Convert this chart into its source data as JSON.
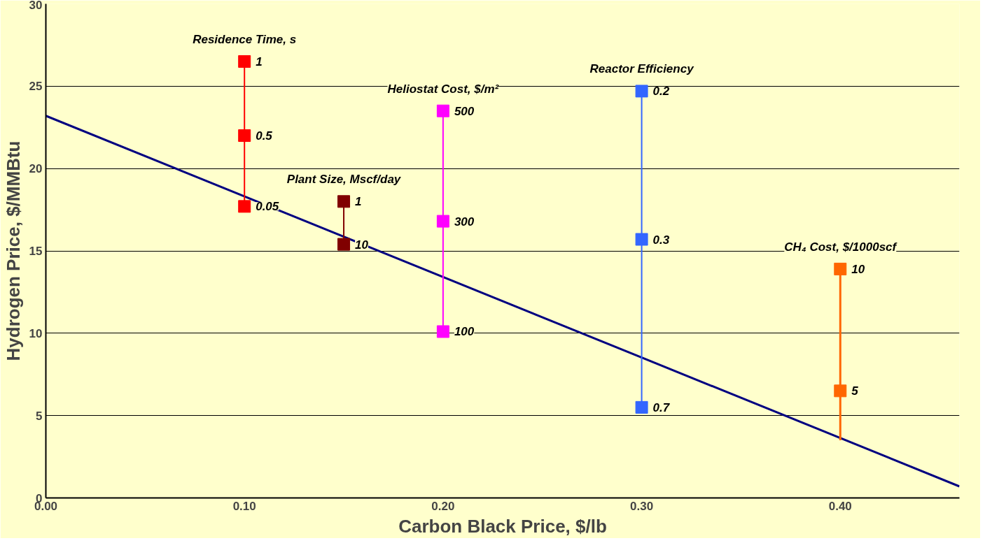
{
  "chart_data": {
    "type": "line",
    "xlabel": "Carbon Black Price, $/lb",
    "ylabel": "Hydrogen Price, $/MMBtu",
    "xlim": [
      0,
      0.46
    ],
    "ylim": [
      0,
      30
    ],
    "xticks": [
      {
        "value": 0,
        "label": "0.00"
      },
      {
        "value": 0.1,
        "label": "0.10"
      },
      {
        "value": 0.2,
        "label": "0.20"
      },
      {
        "value": 0.3,
        "label": "0.30"
      },
      {
        "value": 0.4,
        "label": "0.40"
      }
    ],
    "yticks": [
      0,
      5,
      10,
      15,
      20,
      25,
      30
    ],
    "grid": "y",
    "series": [
      {
        "marker": "none",
        "color": "#000080",
        "x": [
          0,
          0.46
        ],
        "values": [
          23.2,
          0.7
        ]
      },
      {
        "marker": "square",
        "name": "Residence Time, s",
        "color": "#ff0000",
        "x": [
          0.1,
          0.1,
          0.1
        ],
        "values": [
          26.5,
          22.0,
          17.7
        ]
      },
      {
        "marker": "square",
        "name": "Plant Size, Mscf/day",
        "color": "#800000",
        "x": [
          0.15,
          0.15
        ],
        "values": [
          18.0,
          15.4
        ]
      },
      {
        "marker": "square",
        "name": "Heliostat Cost, $/m²",
        "color": "#ff00ff",
        "x": [
          0.2,
          0.2,
          0.2
        ],
        "values": [
          23.5,
          16.8,
          10.1
        ]
      },
      {
        "marker": "square",
        "name": "Reactor Efficiency",
        "color": "#3366ff",
        "x": [
          0.3,
          0.3,
          0.3
        ],
        "values": [
          24.7,
          15.7,
          5.5
        ]
      },
      {
        "marker": "none",
        "color": "#ff6600",
        "x": [
          0.4,
          0.4
        ],
        "values": [
          13.9,
          3.5
        ]
      },
      {
        "type": "scatter",
        "marker": "square",
        "name": "CH₄ Cost, $/1000scf",
        "color": "#ff6600",
        "x": [
          0.4,
          0.4
        ],
        "values": [
          13.9,
          6.5
        ]
      }
    ],
    "annotations": [
      {
        "text": "1",
        "x": 0.1,
        "y": 26.5
      },
      {
        "text": "0.5",
        "x": 0.1,
        "y": 22.0
      },
      {
        "text": "0.05",
        "x": 0.1,
        "y": 17.7
      },
      {
        "text": "1",
        "x": 0.15,
        "y": 18.0
      },
      {
        "text": "10",
        "x": 0.15,
        "y": 15.4
      },
      {
        "text": "500",
        "x": 0.2,
        "y": 23.5
      },
      {
        "text": "300",
        "x": 0.2,
        "y": 16.8
      },
      {
        "text": "100",
        "x": 0.2,
        "y": 10.1
      },
      {
        "text": "0.2",
        "x": 0.3,
        "y": 24.7
      },
      {
        "text": "0.3",
        "x": 0.3,
        "y": 15.7
      },
      {
        "text": "0.7",
        "x": 0.3,
        "y": 5.5
      },
      {
        "text": "10",
        "x": 0.4,
        "y": 13.9
      },
      {
        "text": "5",
        "x": 0.4,
        "y": 6.5
      }
    ]
  }
}
